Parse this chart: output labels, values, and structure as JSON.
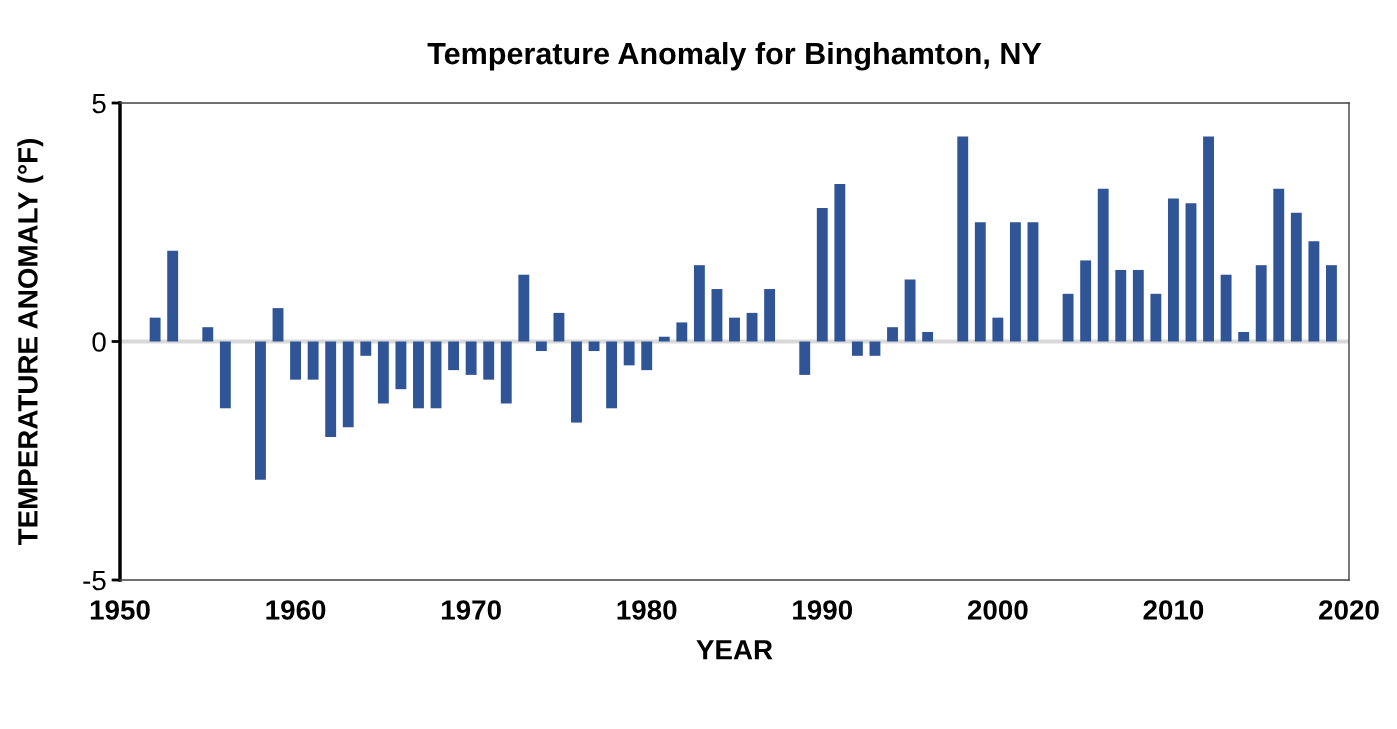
{
  "chart_data": {
    "type": "bar",
    "title": "Temperature Anomaly for Binghamton, NY",
    "xlabel": "YEAR",
    "ylabel": "TEMPERATURE ANOMALY (°F)",
    "x": [
      1952,
      1953,
      1955,
      1956,
      1958,
      1959,
      1960,
      1961,
      1962,
      1963,
      1964,
      1965,
      1966,
      1967,
      1968,
      1969,
      1970,
      1971,
      1972,
      1973,
      1974,
      1975,
      1976,
      1977,
      1978,
      1979,
      1980,
      1981,
      1982,
      1983,
      1984,
      1985,
      1986,
      1987,
      1989,
      1990,
      1991,
      1992,
      1993,
      1994,
      1995,
      1996,
      1998,
      1999,
      2000,
      2001,
      2002,
      2004,
      2005,
      2006,
      2007,
      2008,
      2009,
      2010,
      2011,
      2012,
      2013,
      2014,
      2015,
      2016,
      2017,
      2018,
      2019
    ],
    "series": [
      {
        "color": "#2f5597",
        "values": [
          0.5,
          1.9,
          0.3,
          -1.4,
          -2.9,
          0.7,
          -0.8,
          -0.8,
          -2.0,
          -1.8,
          -0.3,
          -1.3,
          -1.0,
          -1.4,
          -1.4,
          -0.6,
          -0.7,
          -0.8,
          -1.3,
          1.4,
          -0.2,
          0.6,
          -1.7,
          -0.2,
          -1.4,
          -0.5,
          -0.6,
          0.1,
          0.4,
          1.6,
          1.1,
          0.5,
          0.6,
          1.1,
          -0.7,
          2.8,
          3.3,
          -0.3,
          -0.3,
          0.3,
          1.3,
          0.2,
          4.3,
          2.5,
          0.5,
          2.5,
          2.5,
          1.0,
          1.7,
          3.2,
          1.5,
          1.5,
          1.0,
          3.0,
          2.9,
          4.3,
          1.4,
          0.2,
          1.6,
          3.2,
          2.7,
          2.1,
          1.6
        ]
      }
    ],
    "xlim": [
      1950,
      2020
    ],
    "xticks": [
      1950,
      1960,
      1970,
      1980,
      1990,
      2000,
      2010,
      2020
    ],
    "ylim": [
      -5,
      5
    ],
    "yticks": [
      -5,
      0,
      5
    ],
    "ref_lines": [
      {
        "axis": "y",
        "value": 0,
        "color": "#d9d9d9"
      }
    ],
    "grid": false,
    "legend": false
  }
}
